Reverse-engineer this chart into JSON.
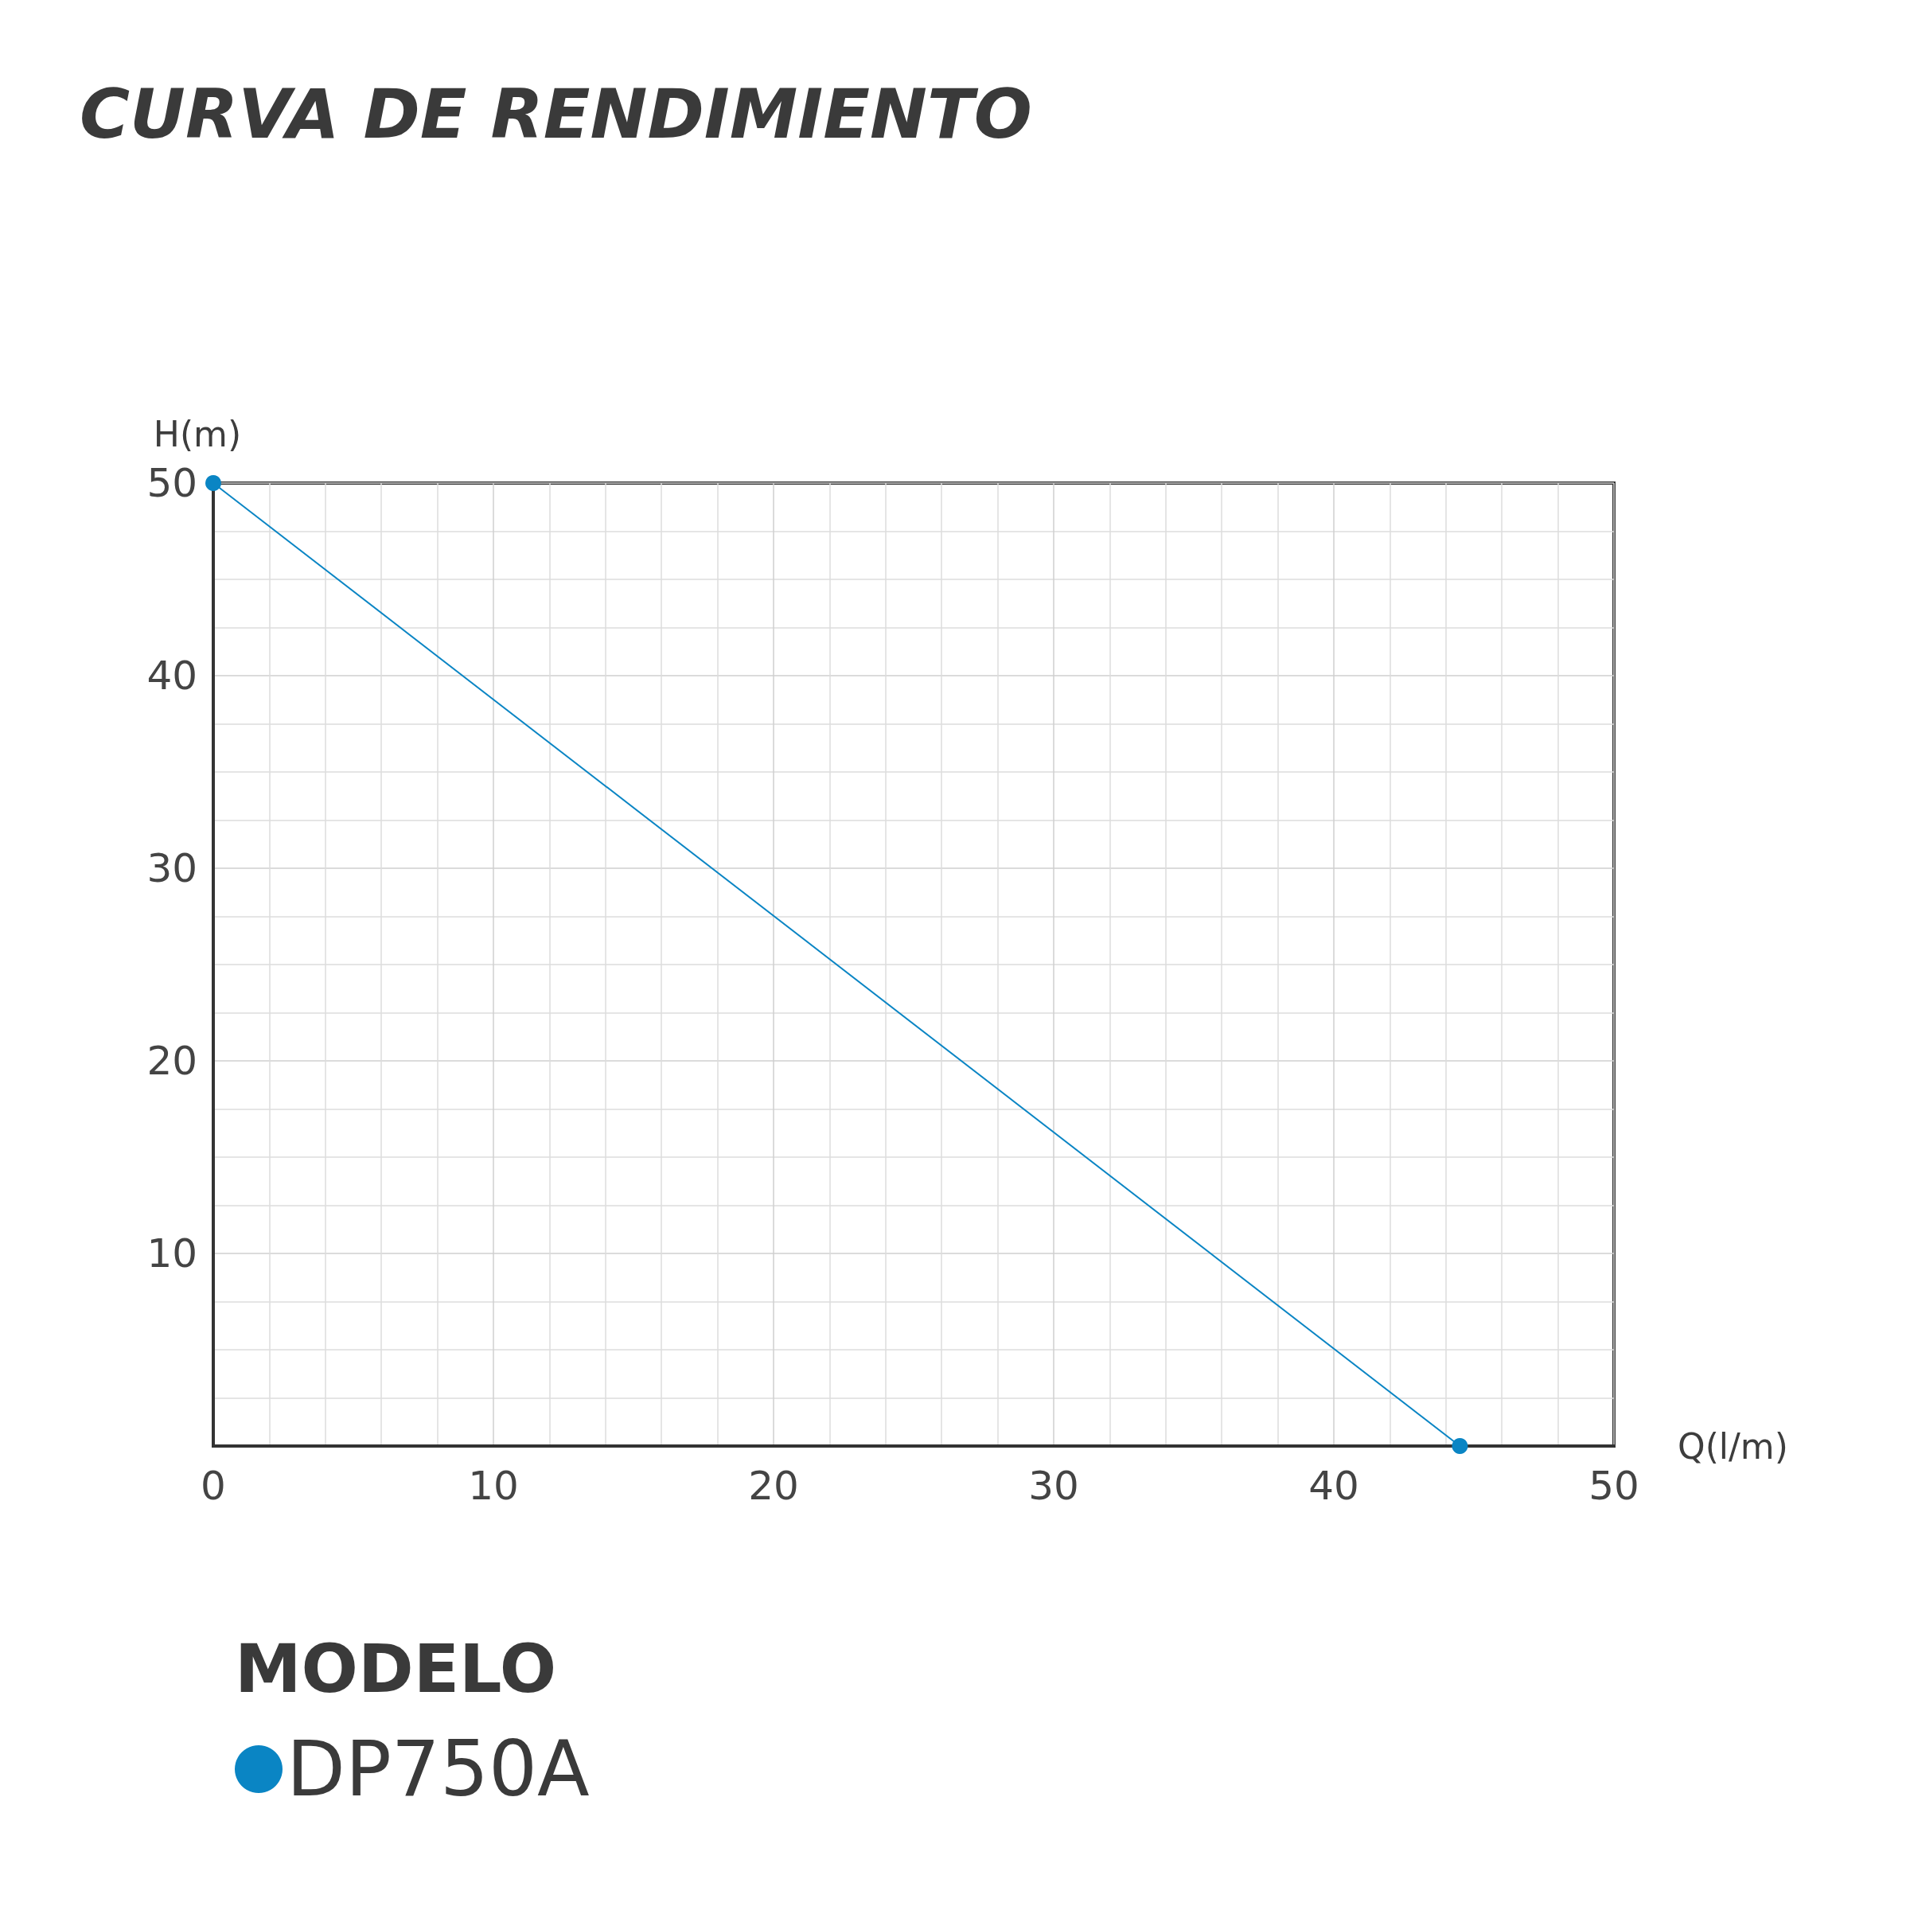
{
  "chart_data": {
    "type": "line",
    "title": "CURVA DE RENDIMIENTO",
    "xlabel": "Q(l/m)",
    "ylabel": "H(m)",
    "legend_title": "MODELO",
    "series": [
      {
        "name": "DP750A",
        "color": "#0a85c4",
        "x": [
          0,
          44.5
        ],
        "values": [
          50,
          0
        ]
      }
    ],
    "xlim": [
      0,
      50
    ],
    "xticks": [
      0,
      10,
      20,
      30,
      40,
      50
    ],
    "ylim": [
      0,
      50
    ],
    "yticks": [
      {
        "value": 0,
        "label": null
      },
      10,
      20,
      30,
      40,
      50
    ],
    "grid": true,
    "legend": "bottom left",
    "marker": "circle",
    "line_style": "solid"
  }
}
